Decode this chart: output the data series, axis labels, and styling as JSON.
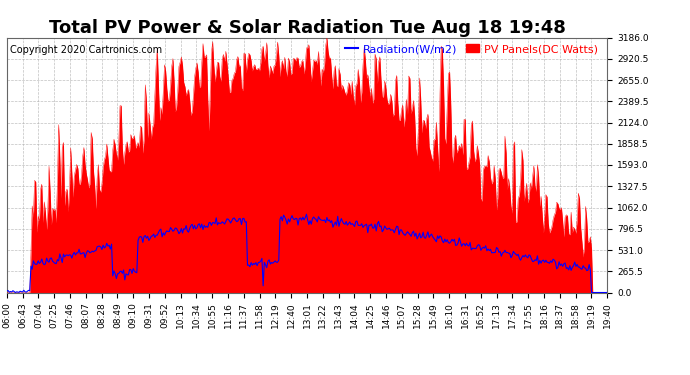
{
  "title": "Total PV Power & Solar Radiation Tue Aug 18 19:48",
  "copyright": "Copyright 2020 Cartronics.com",
  "legend_radiation": "Radiation(W/m2)",
  "legend_pv": "PV Panels(DC Watts)",
  "radiation_color": "blue",
  "pv_color": "red",
  "bg_color": "white",
  "grid_color": "#aaaaaa",
  "ymin": 0.0,
  "ymax": 3186.0,
  "ytick_step": 265.5,
  "x_labels": [
    "06:00",
    "06:43",
    "07:04",
    "07:25",
    "07:46",
    "08:07",
    "08:28",
    "08:49",
    "09:10",
    "09:31",
    "09:52",
    "10:13",
    "10:34",
    "10:55",
    "11:16",
    "11:37",
    "11:58",
    "12:19",
    "12:40",
    "13:01",
    "13:22",
    "13:43",
    "14:04",
    "14:25",
    "14:46",
    "15:07",
    "15:28",
    "15:49",
    "16:10",
    "16:31",
    "16:52",
    "17:13",
    "17:34",
    "17:55",
    "18:16",
    "18:37",
    "18:58",
    "19:19",
    "19:40"
  ],
  "title_fontsize": 13,
  "axis_fontsize": 6.5,
  "copyright_fontsize": 7,
  "legend_fontsize": 8,
  "radiation_color_hex": "#0000ff",
  "pv_color_hex": "#ff0000"
}
